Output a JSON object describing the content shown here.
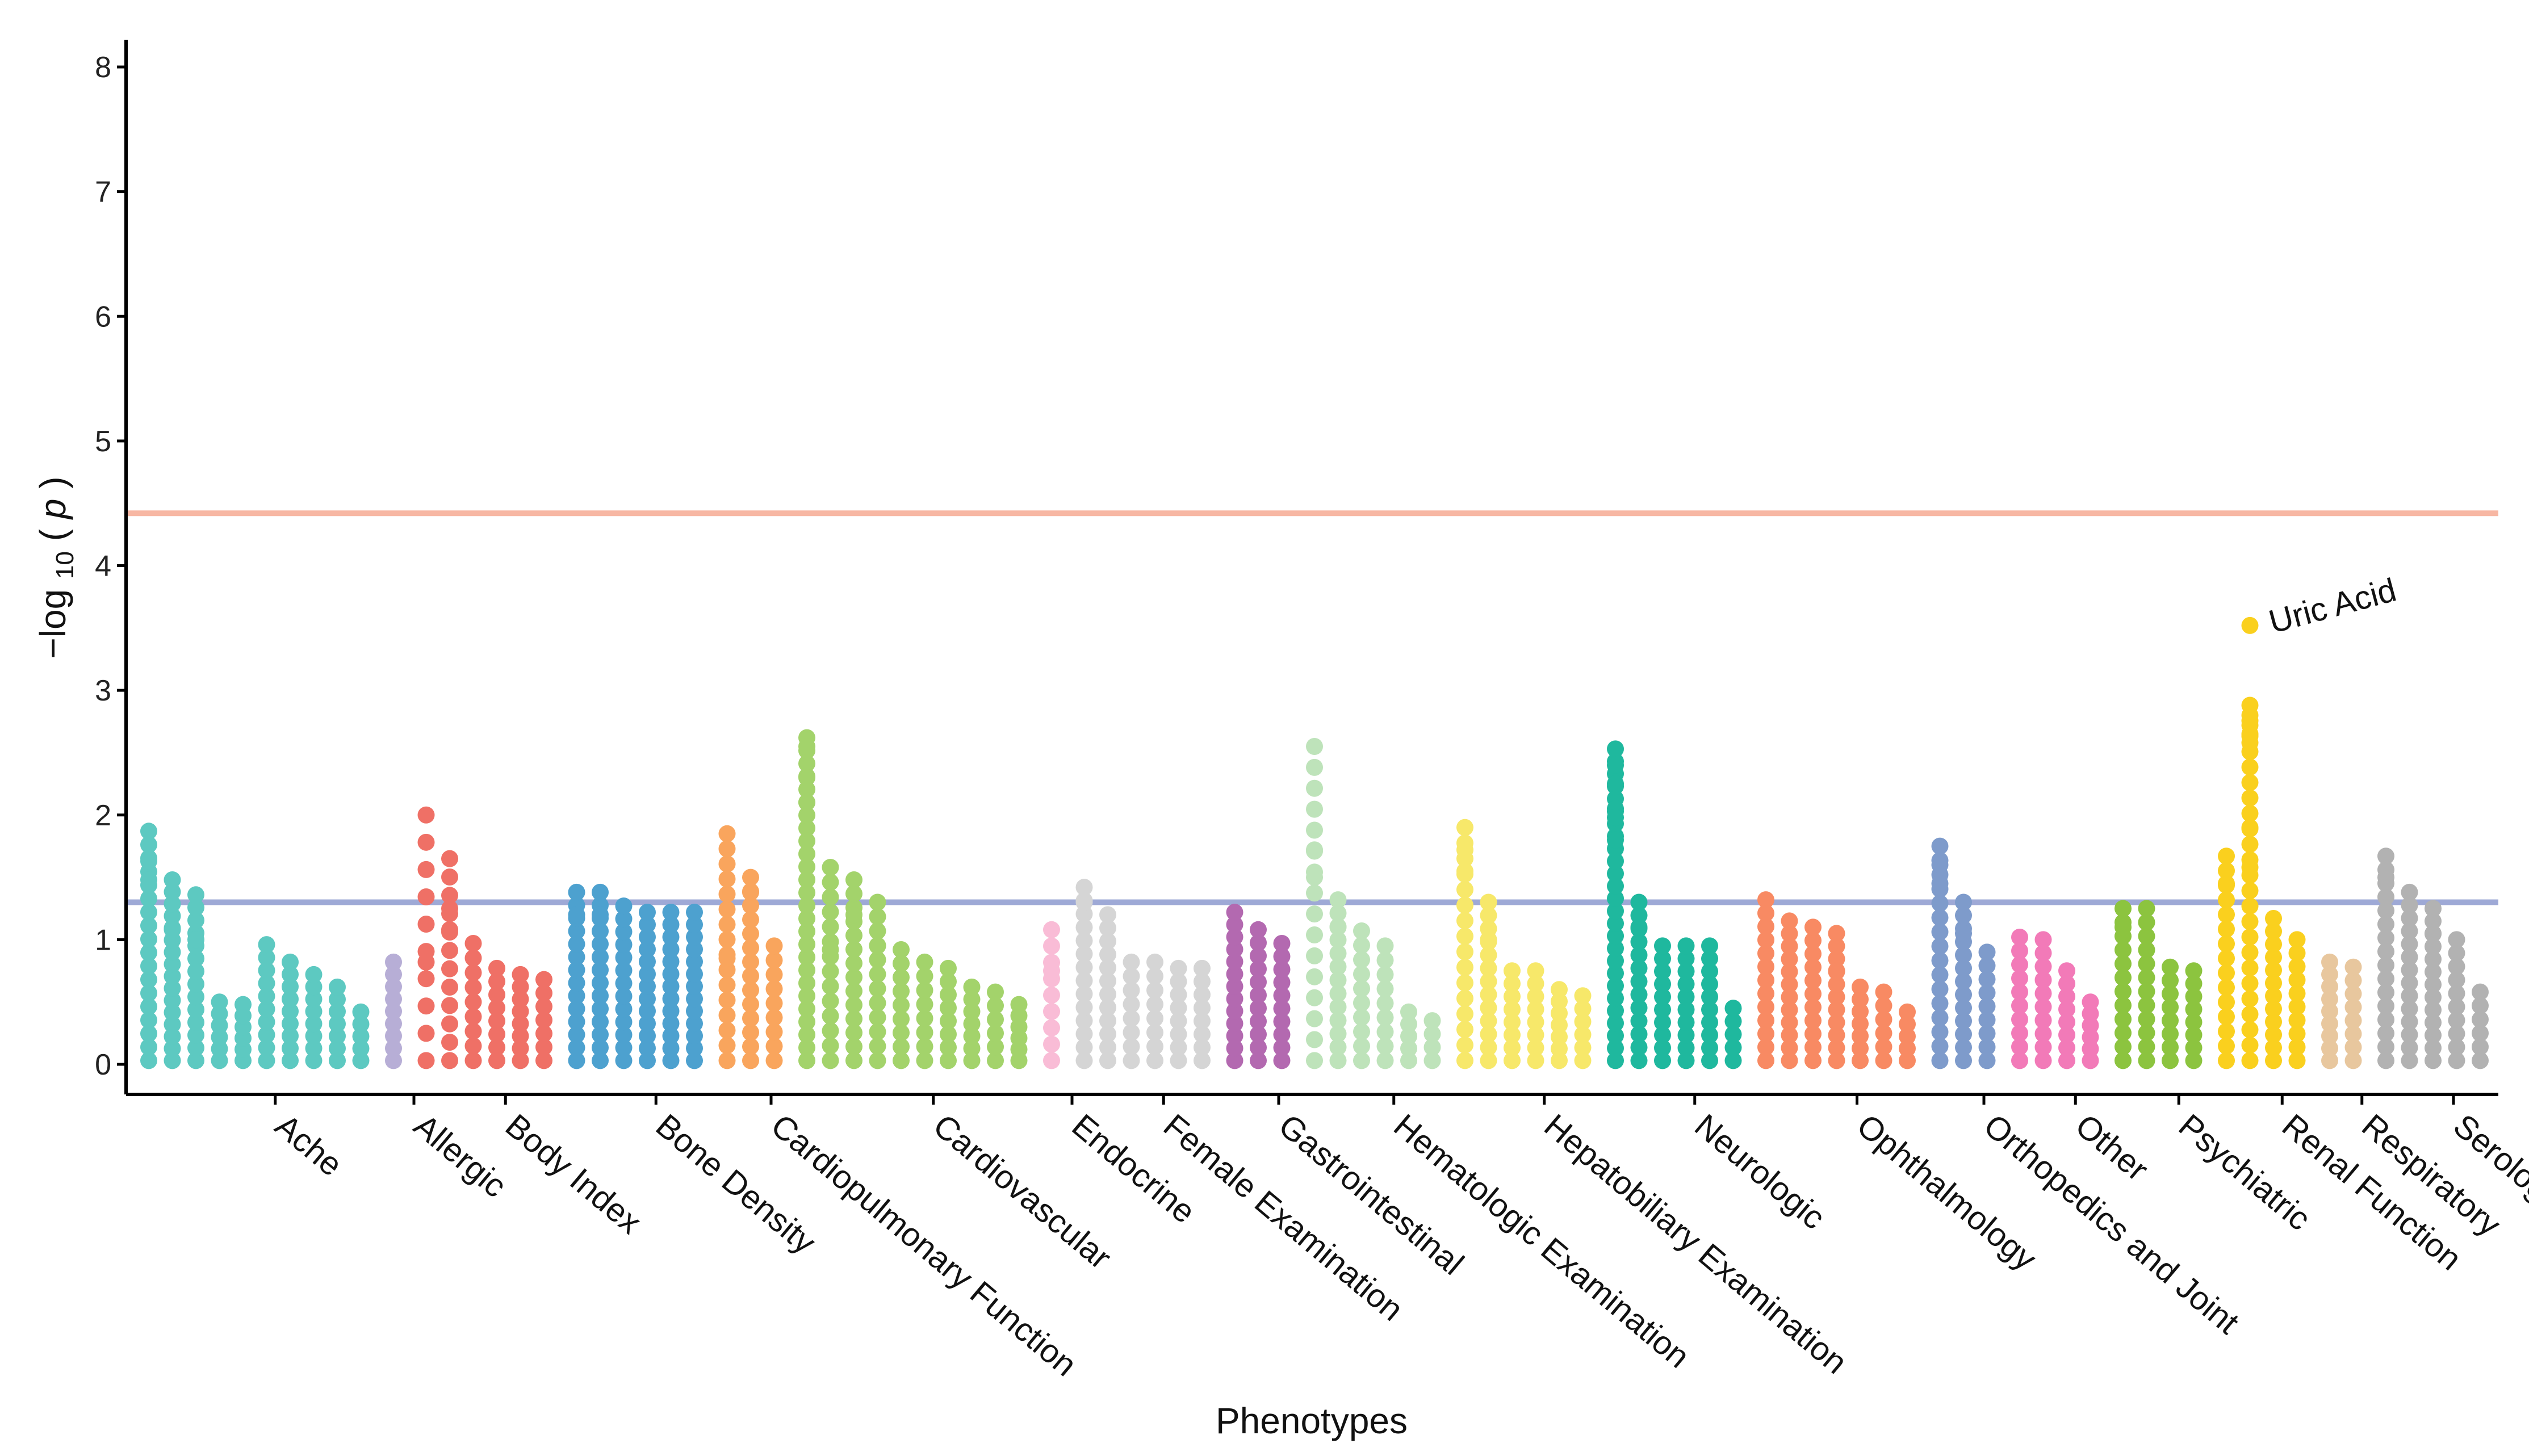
{
  "chart_data": {
    "type": "scatter",
    "subtype": "phewas-manhattan",
    "title": "",
    "xlabel": "Phenotypes",
    "ylabel_parts": {
      "prefix": "−log",
      "subscript": "10",
      "open": "(",
      "var": "p",
      "close": ")"
    },
    "ylim": [
      0,
      8
    ],
    "yticks": [
      "0",
      "1",
      "2",
      "3",
      "4",
      "5",
      "6",
      "7",
      "8"
    ],
    "grid": false,
    "legend": "none",
    "thresholds": [
      {
        "name": "bonferroni",
        "value": 4.42,
        "color": "#F7B7A3"
      },
      {
        "name": "nominal",
        "value": 1.3,
        "color": "#9EA9D6"
      }
    ],
    "categories": [
      {
        "name": "Ache",
        "color": "#5DC9C1",
        "columns": [
          {
            "max": 1.87,
            "n": 18,
            "tops": [
              1.63,
              1.48
            ]
          },
          {
            "max": 1.48,
            "n": 16,
            "tops": [
              1.08
            ]
          },
          {
            "max": 1.36,
            "n": 14,
            "tops": [
              1.0
            ]
          },
          {
            "max": 0.5,
            "n": 6,
            "tops": []
          },
          {
            "max": 0.48,
            "n": 6,
            "tops": []
          },
          {
            "max": 0.96,
            "n": 10,
            "tops": []
          },
          {
            "max": 0.82,
            "n": 9,
            "tops": []
          },
          {
            "max": 0.72,
            "n": 8,
            "tops": []
          },
          {
            "max": 0.62,
            "n": 7,
            "tops": []
          },
          {
            "max": 0.42,
            "n": 5,
            "tops": []
          }
        ]
      },
      {
        "name": "Allergic",
        "color": "#B7AED6",
        "columns": [
          {
            "max": 0.82,
            "n": 9,
            "tops": []
          }
        ]
      },
      {
        "name": "Body Index",
        "color": "#EF7066",
        "columns": [
          {
            "max": 2.0,
            "n": 10,
            "tops": [
              0.82
            ]
          },
          {
            "max": 1.65,
            "n": 12,
            "tops": [
              1.25,
              1.08
            ]
          },
          {
            "max": 0.97,
            "n": 9,
            "tops": []
          },
          {
            "max": 0.77,
            "n": 8,
            "tops": []
          },
          {
            "max": 0.72,
            "n": 8,
            "tops": []
          },
          {
            "max": 0.68,
            "n": 7,
            "tops": []
          }
        ]
      },
      {
        "name": "Bone Density",
        "color": "#4DA1CF",
        "columns": [
          {
            "max": 1.38,
            "n": 14,
            "tops": [
              1.2
            ]
          },
          {
            "max": 1.38,
            "n": 14,
            "tops": [
              1.2
            ]
          },
          {
            "max": 1.27,
            "n": 13,
            "tops": []
          },
          {
            "max": 1.22,
            "n": 13,
            "tops": []
          },
          {
            "max": 1.22,
            "n": 13,
            "tops": []
          },
          {
            "max": 1.22,
            "n": 13,
            "tops": []
          }
        ]
      },
      {
        "name": "Cardiopulmonary Function",
        "color": "#F9A55D",
        "columns": [
          {
            "max": 1.85,
            "n": 16,
            "tops": [
              0.85
            ]
          },
          {
            "max": 1.5,
            "n": 14,
            "tops": [
              1.38
            ]
          },
          {
            "max": 0.95,
            "n": 9,
            "tops": []
          }
        ]
      },
      {
        "name": "Cardiovascular",
        "color": "#A3D36B",
        "columns": [
          {
            "max": 2.62,
            "n": 26,
            "tops": [
              2.55,
              2.3,
              2.1
            ]
          },
          {
            "max": 1.58,
            "n": 14,
            "tops": [
              0.92
            ]
          },
          {
            "max": 1.48,
            "n": 14,
            "tops": [
              1.2
            ]
          },
          {
            "max": 1.3,
            "n": 12,
            "tops": [
              0.95
            ]
          },
          {
            "max": 0.92,
            "n": 9,
            "tops": []
          },
          {
            "max": 0.82,
            "n": 8,
            "tops": []
          },
          {
            "max": 0.77,
            "n": 8,
            "tops": []
          },
          {
            "max": 0.62,
            "n": 7,
            "tops": []
          },
          {
            "max": 0.58,
            "n": 6,
            "tops": []
          },
          {
            "max": 0.48,
            "n": 6,
            "tops": []
          }
        ]
      },
      {
        "name": "Endocrine",
        "color": "#F9BCD6",
        "columns": [
          {
            "max": 1.08,
            "n": 9,
            "tops": [
              0.75
            ]
          }
        ]
      },
      {
        "name": "Female Examination",
        "color": "#D5D5D5",
        "columns": [
          {
            "max": 1.42,
            "n": 14,
            "tops": [
              1.3
            ]
          },
          {
            "max": 1.2,
            "n": 12,
            "tops": []
          },
          {
            "max": 0.82,
            "n": 8,
            "tops": []
          },
          {
            "max": 0.82,
            "n": 8,
            "tops": []
          },
          {
            "max": 0.77,
            "n": 8,
            "tops": []
          },
          {
            "max": 0.77,
            "n": 8,
            "tops": []
          }
        ]
      },
      {
        "name": "Gastrointestinal",
        "color": "#B369B0",
        "columns": [
          {
            "max": 1.22,
            "n": 13,
            "tops": []
          },
          {
            "max": 1.08,
            "n": 11,
            "tops": []
          },
          {
            "max": 0.97,
            "n": 10,
            "tops": []
          }
        ]
      },
      {
        "name": "Hematologic Examination",
        "color": "#BEE3BA",
        "columns": [
          {
            "max": 2.55,
            "n": 16,
            "tops": [
              1.72,
              1.5
            ]
          },
          {
            "max": 1.32,
            "n": 13,
            "tops": [
              1.1
            ]
          },
          {
            "max": 1.07,
            "n": 10,
            "tops": []
          },
          {
            "max": 0.95,
            "n": 9,
            "tops": []
          },
          {
            "max": 0.42,
            "n": 5,
            "tops": []
          },
          {
            "max": 0.35,
            "n": 4,
            "tops": []
          }
        ]
      },
      {
        "name": "Hepatobiliary Examination",
        "color": "#F7E86A",
        "columns": [
          {
            "max": 1.9,
            "n": 16,
            "tops": [
              1.72,
              1.55
            ]
          },
          {
            "max": 1.3,
            "n": 13,
            "tops": [
              1.0
            ]
          },
          {
            "max": 0.75,
            "n": 8,
            "tops": []
          },
          {
            "max": 0.75,
            "n": 8,
            "tops": []
          },
          {
            "max": 0.6,
            "n": 7,
            "tops": []
          },
          {
            "max": 0.55,
            "n": 6,
            "tops": []
          }
        ]
      },
      {
        "name": "Neurologic",
        "color": "#1FB89E",
        "columns": [
          {
            "max": 2.53,
            "n": 26,
            "tops": [
              2.4,
              2.25,
              2.05,
              1.98,
              1.8
            ]
          },
          {
            "max": 1.3,
            "n": 13,
            "tops": [
              1.1
            ]
          },
          {
            "max": 0.95,
            "n": 10,
            "tops": []
          },
          {
            "max": 0.95,
            "n": 10,
            "tops": []
          },
          {
            "max": 0.95,
            "n": 10,
            "tops": []
          },
          {
            "max": 0.45,
            "n": 5,
            "tops": []
          }
        ]
      },
      {
        "name": "Ophthalmology",
        "color": "#F88A63",
        "columns": [
          {
            "max": 1.32,
            "n": 13,
            "tops": []
          },
          {
            "max": 1.15,
            "n": 12,
            "tops": []
          },
          {
            "max": 1.1,
            "n": 11,
            "tops": []
          },
          {
            "max": 1.05,
            "n": 11,
            "tops": [
              0.75
            ]
          },
          {
            "max": 0.62,
            "n": 7,
            "tops": []
          },
          {
            "max": 0.58,
            "n": 6,
            "tops": []
          },
          {
            "max": 0.42,
            "n": 5,
            "tops": []
          }
        ]
      },
      {
        "name": "Orthopedics and Joint",
        "color": "#7E9BCB",
        "columns": [
          {
            "max": 1.75,
            "n": 16,
            "tops": [
              1.6,
              1.45
            ]
          },
          {
            "max": 1.3,
            "n": 13,
            "tops": [
              1.05
            ]
          },
          {
            "max": 0.9,
            "n": 9,
            "tops": []
          }
        ]
      },
      {
        "name": "Other",
        "color": "#F27AB8",
        "columns": [
          {
            "max": 1.02,
            "n": 10,
            "tops": []
          },
          {
            "max": 1.0,
            "n": 10,
            "tops": []
          },
          {
            "max": 0.75,
            "n": 8,
            "tops": []
          },
          {
            "max": 0.5,
            "n": 6,
            "tops": []
          }
        ]
      },
      {
        "name": "Psychiatric",
        "color": "#8CC43F",
        "columns": [
          {
            "max": 1.25,
            "n": 12,
            "tops": [
              1.1
            ]
          },
          {
            "max": 1.25,
            "n": 12,
            "tops": []
          },
          {
            "max": 0.78,
            "n": 8,
            "tops": []
          },
          {
            "max": 0.75,
            "n": 8,
            "tops": []
          }
        ]
      },
      {
        "name": "Renal Function",
        "color": "#FAD01E",
        "columns": [
          {
            "max": 1.67,
            "n": 15,
            "tops": [
              1.45
            ]
          },
          {
            "max": 2.88,
            "n": 24,
            "tops": [
              2.8,
              2.72,
              2.65,
              2.58,
              1.9,
              1.58
            ]
          },
          {
            "max": 1.17,
            "n": 12,
            "tops": []
          },
          {
            "max": 1.0,
            "n": 10,
            "tops": []
          }
        ]
      },
      {
        "name": "Respiratory",
        "color": "#E8C79E",
        "columns": [
          {
            "max": 0.82,
            "n": 9,
            "tops": []
          },
          {
            "max": 0.78,
            "n": 8,
            "tops": []
          }
        ]
      },
      {
        "name": "Serologic Examination",
        "color": "#B2B2B2",
        "columns": [
          {
            "max": 1.67,
            "n": 16,
            "tops": [
              1.5
            ]
          },
          {
            "max": 1.38,
            "n": 14,
            "tops": []
          },
          {
            "max": 1.25,
            "n": 13,
            "tops": [
              1.05
            ]
          },
          {
            "max": 1.0,
            "n": 10,
            "tops": []
          },
          {
            "max": 0.58,
            "n": 6,
            "tops": []
          }
        ]
      }
    ],
    "annotations": [
      {
        "text": "Uric Acid",
        "category": "Renal Function",
        "x_column": 1,
        "y": 3.52
      }
    ]
  }
}
